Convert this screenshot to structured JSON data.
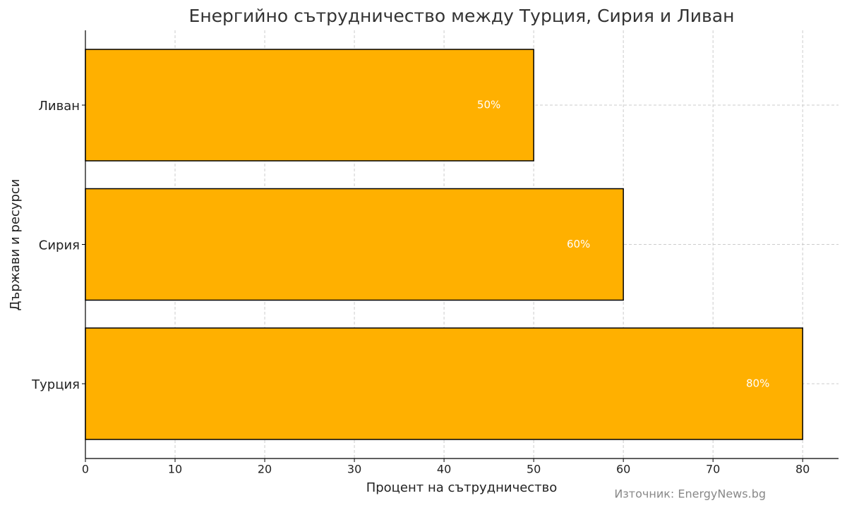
{
  "chart_data": {
    "type": "barh",
    "title": "Енергийно сътрудничество между Турция, Сирия и Ливан",
    "x_label": "Процент на сътрудничество",
    "y_label": "Държави и ресурси",
    "annotation": "Източник: EnergyNews.bg",
    "categories": [
      "Турция",
      "Сирия",
      "Ливан"
    ],
    "values": [
      80,
      60,
      50
    ],
    "value_labels": [
      "80%",
      "60%",
      "50%"
    ],
    "color": "#ffb000",
    "xlim": [
      0,
      84
    ],
    "xticks": [
      0,
      10,
      20,
      30,
      40,
      50,
      60,
      70,
      80
    ],
    "grid": true
  }
}
